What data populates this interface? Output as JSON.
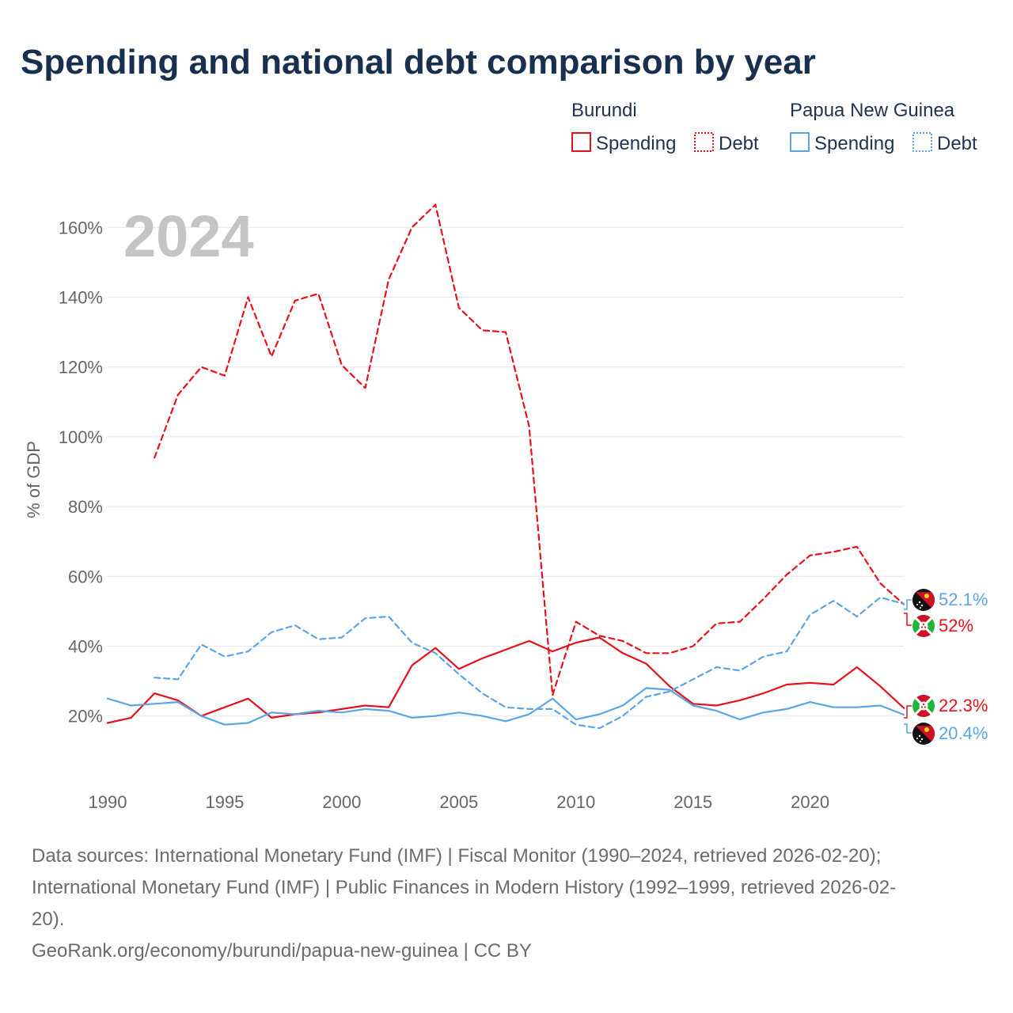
{
  "title": "Spending and national debt comparison by year",
  "legend": {
    "groups": [
      {
        "name": "Burundi",
        "color": "#e8101a",
        "items": [
          "Spending",
          "Debt"
        ]
      },
      {
        "name": "Papua New Guinea",
        "color": "#5aa5e6",
        "items": [
          "Spending",
          "Debt"
        ]
      }
    ]
  },
  "year_watermark": "2024",
  "end_labels": {
    "png_debt": "52.1%",
    "burundi_debt": "52%",
    "burundi_spending": "22.3%",
    "png_spending": "20.4%"
  },
  "colors": {
    "burundi": "#e8101a",
    "png": "#5aa5e6",
    "title": "#17304f"
  },
  "icons": [
    "papua-new-guinea-flag-icon",
    "burundi-flag-icon"
  ],
  "footer": {
    "source_line1": "Data sources: International Monetary Fund (IMF) | Fiscal Monitor (1990–2024, retrieved 2026-02-20);",
    "source_line2": "International Monetary Fund (IMF) | Public Finances in Modern History (1992–1999, retrieved 2026-02-",
    "source_line3": "20).",
    "credit": "GeoRank.org/economy/burundi/papua-new-guinea | CC BY"
  },
  "chart_data": {
    "type": "line",
    "ylabel": "% of GDP",
    "xlabel": "",
    "x_ticks": [
      1990,
      1995,
      2000,
      2005,
      2010,
      2015,
      2020
    ],
    "y_ticks": [
      20,
      40,
      60,
      80,
      100,
      120,
      140,
      160
    ],
    "y_tick_labels": [
      "20%",
      "40%",
      "60%",
      "80%",
      "100%",
      "120%",
      "140%",
      "160%"
    ],
    "xlim": [
      1990,
      2024
    ],
    "ylim": [
      12,
      168
    ],
    "grid": true,
    "series": [
      {
        "name": "Burundi Debt",
        "country": "Burundi",
        "metric": "Debt",
        "dashed": true,
        "color": "#e8101a",
        "x": [
          1992,
          1993,
          1994,
          1995,
          1996,
          1997,
          1998,
          1999,
          2000,
          2001,
          2002,
          2003,
          2004,
          2005,
          2006,
          2007,
          2008,
          2009,
          2010,
          2011,
          2012,
          2013,
          2014,
          2015,
          2016,
          2017,
          2018,
          2019,
          2020,
          2021,
          2022,
          2023,
          2024
        ],
        "values": [
          94,
          112,
          120,
          117.5,
          140,
          123,
          139,
          141,
          120.5,
          114,
          145,
          160,
          166.5,
          137,
          130.5,
          130,
          103,
          26,
          47,
          43,
          41.5,
          38,
          38,
          40,
          46.5,
          47,
          53.5,
          60.5,
          66,
          67,
          68.5,
          58,
          52
        ]
      },
      {
        "name": "Burundi Spending",
        "country": "Burundi",
        "metric": "Spending",
        "dashed": false,
        "color": "#e8101a",
        "x": [
          1990,
          1991,
          1992,
          1993,
          1994,
          1995,
          1996,
          1997,
          1998,
          1999,
          2000,
          2001,
          2002,
          2003,
          2004,
          2005,
          2006,
          2007,
          2008,
          2009,
          2010,
          2011,
          2012,
          2013,
          2014,
          2015,
          2016,
          2017,
          2018,
          2019,
          2020,
          2021,
          2022,
          2023,
          2024
        ],
        "values": [
          18,
          19.5,
          26.5,
          24.5,
          20,
          22.5,
          25,
          19.5,
          20.5,
          21,
          22,
          23,
          22.5,
          34.5,
          39.5,
          33.5,
          36.5,
          39,
          41.5,
          38.5,
          41,
          42.5,
          38,
          35,
          28.5,
          23.5,
          23,
          24.5,
          26.5,
          29,
          29.5,
          29,
          34,
          28.5,
          22.3
        ]
      },
      {
        "name": "Papua New Guinea Debt",
        "country": "Papua New Guinea",
        "metric": "Debt",
        "dashed": true,
        "color": "#5aa5e6",
        "x": [
          1992,
          1993,
          1994,
          1995,
          1996,
          1997,
          1998,
          1999,
          2000,
          2001,
          2002,
          2003,
          2004,
          2005,
          2006,
          2007,
          2008,
          2009,
          2010,
          2011,
          2012,
          2013,
          2014,
          2015,
          2016,
          2017,
          2018,
          2019,
          2020,
          2021,
          2022,
          2023,
          2024
        ],
        "values": [
          31,
          30.5,
          40.5,
          37,
          38.5,
          44,
          46,
          42,
          42.5,
          48,
          48.5,
          41,
          38,
          32,
          26.5,
          22.5,
          22,
          22,
          17.5,
          16.5,
          20,
          25.5,
          27,
          30.5,
          34,
          33,
          37,
          38.5,
          49,
          53,
          48.5,
          54,
          52.1
        ]
      },
      {
        "name": "Papua New Guinea Spending",
        "country": "Papua New Guinea",
        "metric": "Spending",
        "dashed": false,
        "color": "#5aa5e6",
        "x": [
          1990,
          1991,
          1992,
          1993,
          1994,
          1995,
          1996,
          1997,
          1998,
          1999,
          2000,
          2001,
          2002,
          2003,
          2004,
          2005,
          2006,
          2007,
          2008,
          2009,
          2010,
          2011,
          2012,
          2013,
          2014,
          2015,
          2016,
          2017,
          2018,
          2019,
          2020,
          2021,
          2022,
          2023,
          2024
        ],
        "values": [
          25,
          23,
          23.5,
          24,
          20,
          17.5,
          18,
          21,
          20.5,
          21.5,
          21,
          22,
          21.5,
          19.5,
          20,
          21,
          20,
          18.5,
          20.5,
          25,
          19,
          20.5,
          23,
          28,
          27.5,
          23,
          21.5,
          19,
          21,
          22,
          24,
          22.5,
          22.5,
          23,
          20.4
        ]
      }
    ]
  }
}
